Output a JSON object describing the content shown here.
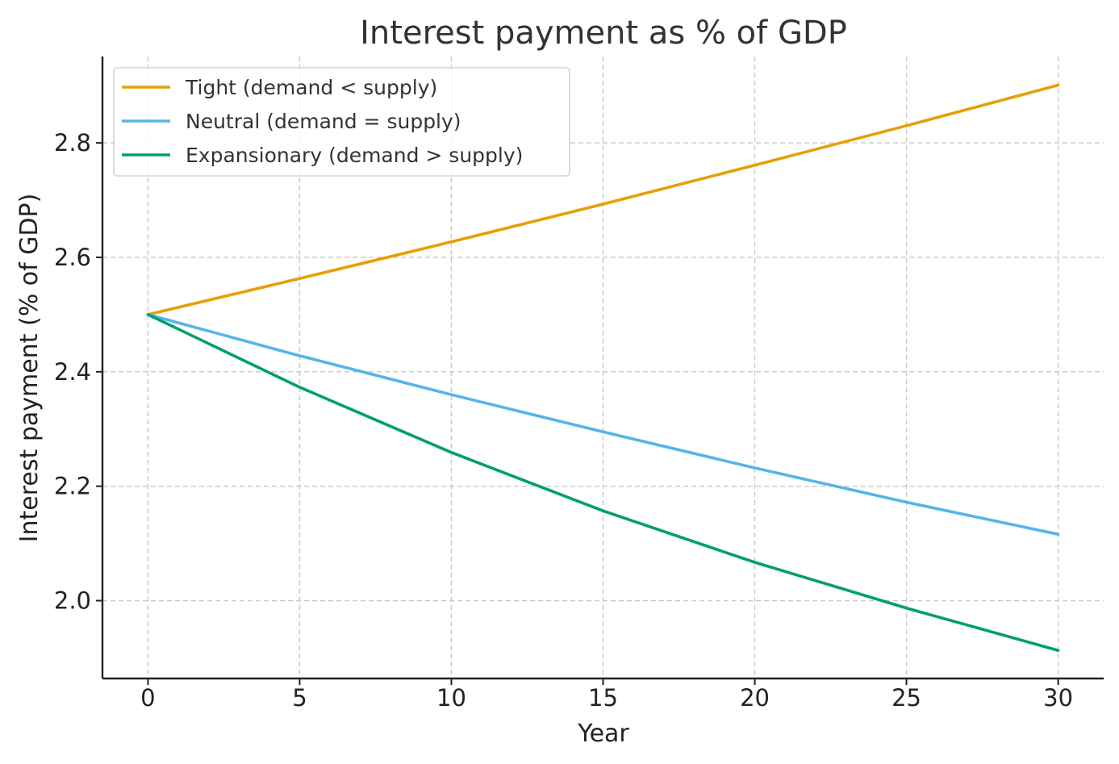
{
  "chart_data": {
    "type": "line",
    "title": "Interest payment as % of GDP",
    "xlabel": "Year",
    "ylabel": "Interest payment (% of GDP)",
    "xlim": [
      -1.5,
      31.5
    ],
    "ylim": [
      1.864,
      2.951
    ],
    "xticks": [
      0,
      5,
      10,
      15,
      20,
      25,
      30
    ],
    "yticks": [
      2.0,
      2.2,
      2.4,
      2.6,
      2.8
    ],
    "xtick_labels": [
      "0",
      "5",
      "10",
      "15",
      "20",
      "25",
      "30"
    ],
    "ytick_labels": [
      "2.0",
      "2.2",
      "2.4",
      "2.6",
      "2.8"
    ],
    "grid": true,
    "legend_position": "top-left",
    "x": [
      0,
      5,
      10,
      15,
      20,
      25,
      30
    ],
    "series": [
      {
        "name": "Tight (demand < supply)",
        "color": "#E69F00",
        "values": [
          2.5,
          2.563,
          2.627,
          2.693,
          2.761,
          2.83,
          2.901
        ]
      },
      {
        "name": "Neutral (demand = supply)",
        "color": "#56B4E9",
        "values": [
          2.5,
          2.428,
          2.36,
          2.295,
          2.232,
          2.172,
          2.116
        ]
      },
      {
        "name": "Expansionary (demand > supply)",
        "color": "#009E73",
        "values": [
          2.5,
          2.373,
          2.259,
          2.157,
          2.067,
          1.987,
          1.913
        ]
      }
    ]
  }
}
